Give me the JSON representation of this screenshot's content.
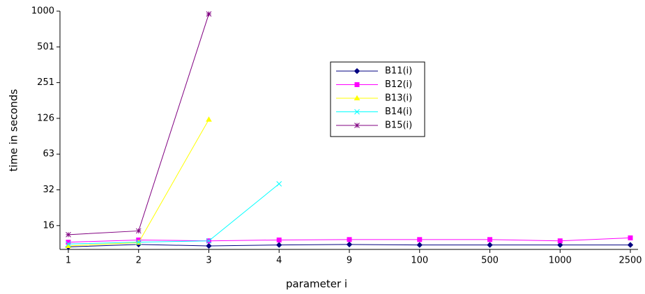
{
  "chart_data": {
    "type": "line",
    "x_label": "parameter i",
    "y_label": "time in seconds",
    "categories": [
      "1",
      "2",
      "3",
      "4",
      "9",
      "100",
      "500",
      "1000",
      "2500"
    ],
    "ylim": [
      10,
      1000
    ],
    "log_y": true,
    "yticks": [
      {
        "value": 15.85,
        "label": "16"
      },
      {
        "value": 31.62,
        "label": "32"
      },
      {
        "value": 63.1,
        "label": "63"
      },
      {
        "value": 125.89,
        "label": "126"
      },
      {
        "value": 251.19,
        "label": "251"
      },
      {
        "value": 501.19,
        "label": "501"
      },
      1000
    ],
    "legend": "upper-center",
    "series": [
      {
        "name": "B11(i)",
        "color": "#000080",
        "marker": "diamond",
        "values": [
          10.5,
          11.0,
          10.7,
          10.9,
          11.0,
          10.9,
          10.9,
          10.9,
          10.9
        ]
      },
      {
        "name": "B12(i)",
        "color": "#ff00ff",
        "marker": "square",
        "values": [
          11.5,
          12.0,
          11.8,
          12.0,
          12.1,
          12.1,
          12.1,
          11.8,
          12.5
        ]
      },
      {
        "name": "B13(i)",
        "color": "#ffff00",
        "marker": "triangle",
        "values": [
          10.7,
          11.4,
          123,
          null,
          null,
          null,
          null,
          null,
          null
        ]
      },
      {
        "name": "B14(i)",
        "color": "#00ffff",
        "marker": "cross",
        "values": [
          11.1,
          11.5,
          11.8,
          35.5,
          null,
          null,
          null,
          null,
          null
        ]
      },
      {
        "name": "B15(i)",
        "color": "#800080",
        "marker": "star",
        "values": [
          13.3,
          14.3,
          948,
          null,
          null,
          null,
          null,
          null,
          null
        ]
      }
    ]
  }
}
